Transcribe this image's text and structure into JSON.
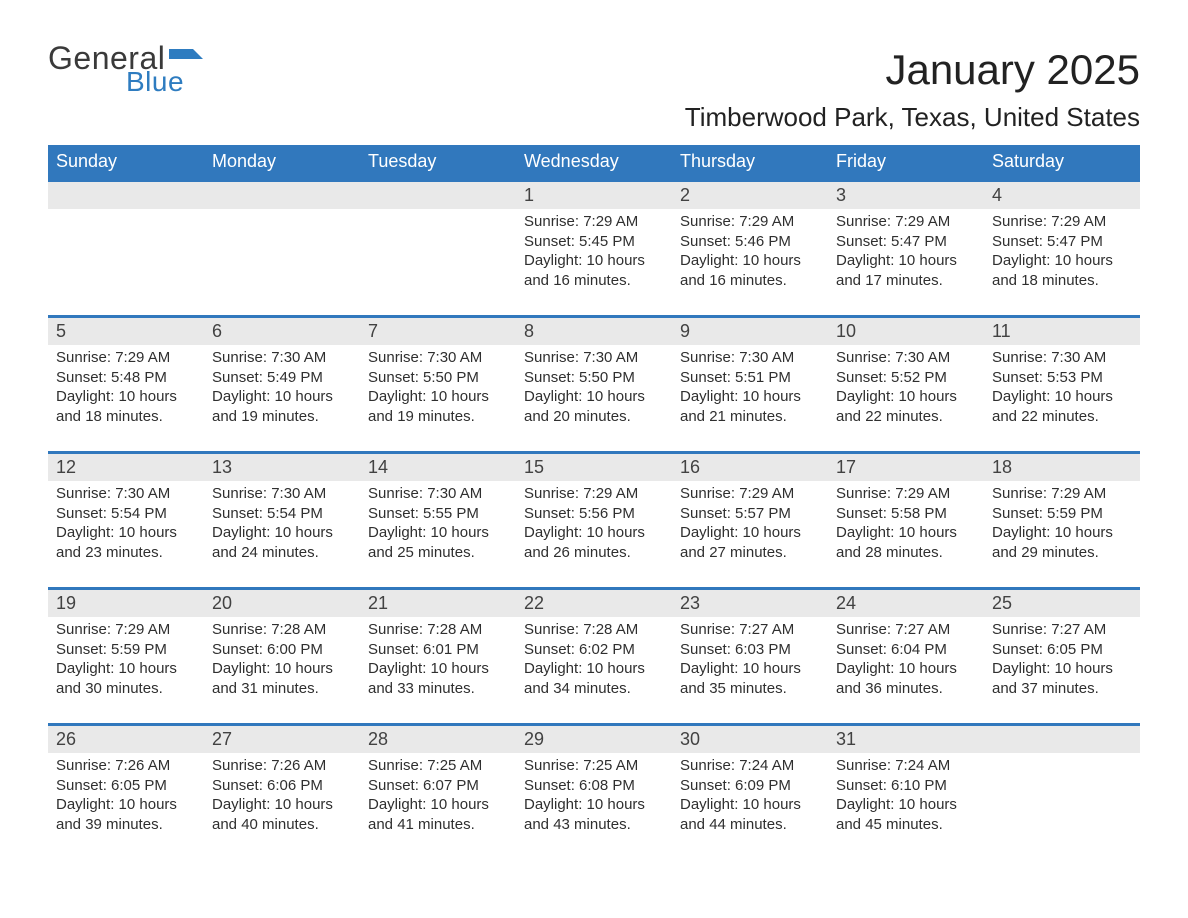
{
  "logo": {
    "word1": "General",
    "word2": "Blue",
    "flag_color": "#2e7cc0",
    "text_gray": "#3a3a3a"
  },
  "title": "January 2025",
  "subtitle": "Timberwood Park, Texas, United States",
  "colors": {
    "header_bar": "#3178bd",
    "header_text": "#ffffff",
    "num_band": "#e9e9e9",
    "week_border": "#3178bd",
    "body_text": "#2f2f2f",
    "page_bg": "#ffffff"
  },
  "fontsizes": {
    "title": 42,
    "subtitle": 26,
    "dow": 18,
    "daynum": 18,
    "body": 15
  },
  "dow": [
    "Sunday",
    "Monday",
    "Tuesday",
    "Wednesday",
    "Thursday",
    "Friday",
    "Saturday"
  ],
  "weeks": [
    [
      null,
      null,
      null,
      {
        "n": "1",
        "sr": "Sunrise: 7:29 AM",
        "ss": "Sunset: 5:45 PM",
        "dl": "Daylight: 10 hours and 16 minutes."
      },
      {
        "n": "2",
        "sr": "Sunrise: 7:29 AM",
        "ss": "Sunset: 5:46 PM",
        "dl": "Daylight: 10 hours and 16 minutes."
      },
      {
        "n": "3",
        "sr": "Sunrise: 7:29 AM",
        "ss": "Sunset: 5:47 PM",
        "dl": "Daylight: 10 hours and 17 minutes."
      },
      {
        "n": "4",
        "sr": "Sunrise: 7:29 AM",
        "ss": "Sunset: 5:47 PM",
        "dl": "Daylight: 10 hours and 18 minutes."
      }
    ],
    [
      {
        "n": "5",
        "sr": "Sunrise: 7:29 AM",
        "ss": "Sunset: 5:48 PM",
        "dl": "Daylight: 10 hours and 18 minutes."
      },
      {
        "n": "6",
        "sr": "Sunrise: 7:30 AM",
        "ss": "Sunset: 5:49 PM",
        "dl": "Daylight: 10 hours and 19 minutes."
      },
      {
        "n": "7",
        "sr": "Sunrise: 7:30 AM",
        "ss": "Sunset: 5:50 PM",
        "dl": "Daylight: 10 hours and 19 minutes."
      },
      {
        "n": "8",
        "sr": "Sunrise: 7:30 AM",
        "ss": "Sunset: 5:50 PM",
        "dl": "Daylight: 10 hours and 20 minutes."
      },
      {
        "n": "9",
        "sr": "Sunrise: 7:30 AM",
        "ss": "Sunset: 5:51 PM",
        "dl": "Daylight: 10 hours and 21 minutes."
      },
      {
        "n": "10",
        "sr": "Sunrise: 7:30 AM",
        "ss": "Sunset: 5:52 PM",
        "dl": "Daylight: 10 hours and 22 minutes."
      },
      {
        "n": "11",
        "sr": "Sunrise: 7:30 AM",
        "ss": "Sunset: 5:53 PM",
        "dl": "Daylight: 10 hours and 22 minutes."
      }
    ],
    [
      {
        "n": "12",
        "sr": "Sunrise: 7:30 AM",
        "ss": "Sunset: 5:54 PM",
        "dl": "Daylight: 10 hours and 23 minutes."
      },
      {
        "n": "13",
        "sr": "Sunrise: 7:30 AM",
        "ss": "Sunset: 5:54 PM",
        "dl": "Daylight: 10 hours and 24 minutes."
      },
      {
        "n": "14",
        "sr": "Sunrise: 7:30 AM",
        "ss": "Sunset: 5:55 PM",
        "dl": "Daylight: 10 hours and 25 minutes."
      },
      {
        "n": "15",
        "sr": "Sunrise: 7:29 AM",
        "ss": "Sunset: 5:56 PM",
        "dl": "Daylight: 10 hours and 26 minutes."
      },
      {
        "n": "16",
        "sr": "Sunrise: 7:29 AM",
        "ss": "Sunset: 5:57 PM",
        "dl": "Daylight: 10 hours and 27 minutes."
      },
      {
        "n": "17",
        "sr": "Sunrise: 7:29 AM",
        "ss": "Sunset: 5:58 PM",
        "dl": "Daylight: 10 hours and 28 minutes."
      },
      {
        "n": "18",
        "sr": "Sunrise: 7:29 AM",
        "ss": "Sunset: 5:59 PM",
        "dl": "Daylight: 10 hours and 29 minutes."
      }
    ],
    [
      {
        "n": "19",
        "sr": "Sunrise: 7:29 AM",
        "ss": "Sunset: 5:59 PM",
        "dl": "Daylight: 10 hours and 30 minutes."
      },
      {
        "n": "20",
        "sr": "Sunrise: 7:28 AM",
        "ss": "Sunset: 6:00 PM",
        "dl": "Daylight: 10 hours and 31 minutes."
      },
      {
        "n": "21",
        "sr": "Sunrise: 7:28 AM",
        "ss": "Sunset: 6:01 PM",
        "dl": "Daylight: 10 hours and 33 minutes."
      },
      {
        "n": "22",
        "sr": "Sunrise: 7:28 AM",
        "ss": "Sunset: 6:02 PM",
        "dl": "Daylight: 10 hours and 34 minutes."
      },
      {
        "n": "23",
        "sr": "Sunrise: 7:27 AM",
        "ss": "Sunset: 6:03 PM",
        "dl": "Daylight: 10 hours and 35 minutes."
      },
      {
        "n": "24",
        "sr": "Sunrise: 7:27 AM",
        "ss": "Sunset: 6:04 PM",
        "dl": "Daylight: 10 hours and 36 minutes."
      },
      {
        "n": "25",
        "sr": "Sunrise: 7:27 AM",
        "ss": "Sunset: 6:05 PM",
        "dl": "Daylight: 10 hours and 37 minutes."
      }
    ],
    [
      {
        "n": "26",
        "sr": "Sunrise: 7:26 AM",
        "ss": "Sunset: 6:05 PM",
        "dl": "Daylight: 10 hours and 39 minutes."
      },
      {
        "n": "27",
        "sr": "Sunrise: 7:26 AM",
        "ss": "Sunset: 6:06 PM",
        "dl": "Daylight: 10 hours and 40 minutes."
      },
      {
        "n": "28",
        "sr": "Sunrise: 7:25 AM",
        "ss": "Sunset: 6:07 PM",
        "dl": "Daylight: 10 hours and 41 minutes."
      },
      {
        "n": "29",
        "sr": "Sunrise: 7:25 AM",
        "ss": "Sunset: 6:08 PM",
        "dl": "Daylight: 10 hours and 43 minutes."
      },
      {
        "n": "30",
        "sr": "Sunrise: 7:24 AM",
        "ss": "Sunset: 6:09 PM",
        "dl": "Daylight: 10 hours and 44 minutes."
      },
      {
        "n": "31",
        "sr": "Sunrise: 7:24 AM",
        "ss": "Sunset: 6:10 PM",
        "dl": "Daylight: 10 hours and 45 minutes."
      },
      null
    ]
  ]
}
